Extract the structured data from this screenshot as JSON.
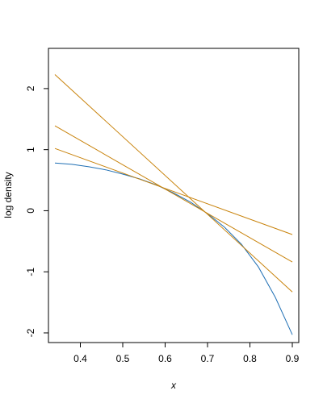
{
  "chart_data": {
    "type": "line",
    "title": "",
    "xlabel": "x",
    "ylabel": "log density",
    "xlim": [
      0.34,
      0.9
    ],
    "ylim": [
      -2.0,
      2.5
    ],
    "x_ticks": [
      "0.4",
      "0.5",
      "0.6",
      "0.7",
      "0.8",
      "0.9"
    ],
    "y_ticks": [
      "-2",
      "-1",
      "0",
      "1",
      "2"
    ],
    "grid": false,
    "legend": "none",
    "series": [
      {
        "color": "#1f6fb4",
        "x": [
          0.34,
          0.38,
          0.42,
          0.46,
          0.5,
          0.54,
          0.58,
          0.62,
          0.66,
          0.7,
          0.74,
          0.78,
          0.82,
          0.86,
          0.9
        ],
        "y": [
          0.78,
          0.76,
          0.72,
          0.67,
          0.6,
          0.52,
          0.42,
          0.29,
          0.14,
          -0.05,
          -0.27,
          -0.55,
          -0.92,
          -1.42,
          -2.03
        ]
      },
      {
        "color": "#c8820a",
        "x": [
          0.34,
          0.9
        ],
        "y": [
          2.23,
          -1.33
        ]
      },
      {
        "color": "#c8820a",
        "x": [
          0.34,
          0.9
        ],
        "y": [
          1.39,
          -0.84
        ]
      },
      {
        "color": "#c8820a",
        "x": [
          0.34,
          0.9
        ],
        "y": [
          1.02,
          -0.39
        ]
      }
    ]
  }
}
